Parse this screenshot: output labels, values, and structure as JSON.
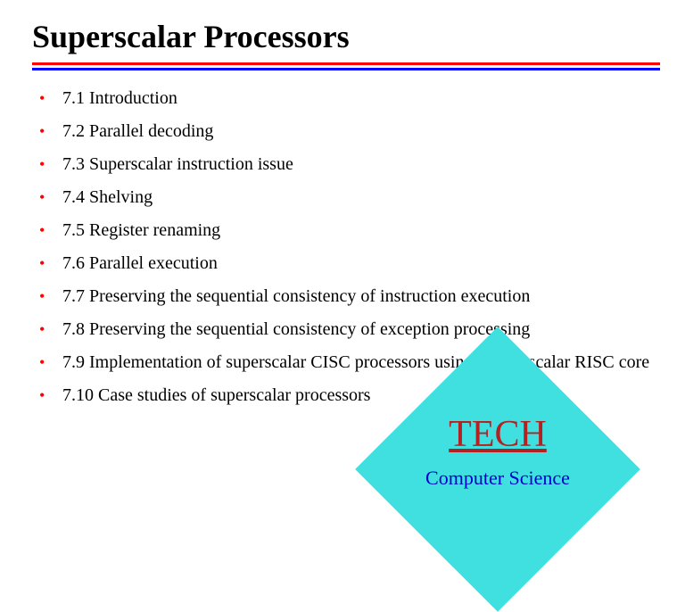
{
  "title": "Superscalar Processors",
  "bullets": [
    "7.1 Introduction",
    "7.2 Parallel decoding",
    "7.3 Superscalar instruction issue",
    "7.4 Shelving",
    "7.5 Register renaming",
    "7.6 Parallel execution",
    "7.7 Preserving the sequential consistency of instruction execution",
    "7.8 Preserving the sequential consistency of exception processing",
    "7.9 Implementation of superscalar CISC processors using a superscalar RISC core",
    "7.10 Case studies of superscalar processors"
  ],
  "badge": {
    "title": "TECH ",
    "subtitle": "Computer Science",
    "diamond_color": "#40e0e0",
    "title_color": "#b22222",
    "subtitle_color": "#0000cc"
  },
  "divider": {
    "top_color": "#ff0000",
    "bottom_color": "#0000ff"
  },
  "bullet_color": "#ff0000",
  "text_color": "#000000",
  "background_color": "#ffffff",
  "title_fontsize": 36,
  "bullet_fontsize": 20
}
